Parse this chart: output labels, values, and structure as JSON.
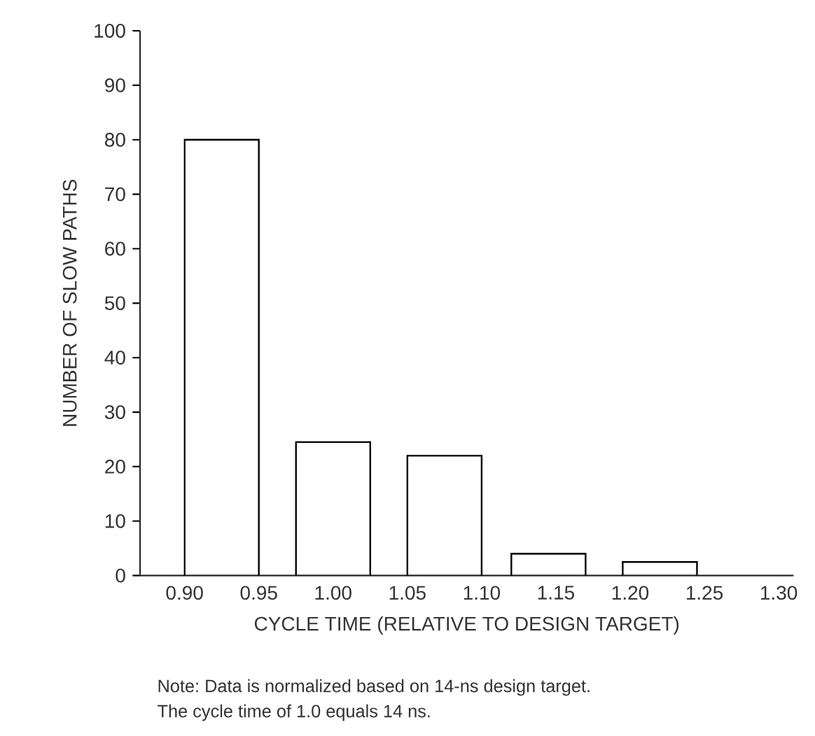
{
  "chart_data": {
    "type": "bar",
    "xlabel": "CYCLE TIME (RELATIVE TO DESIGN TARGET)",
    "ylabel": "NUMBER OF SLOW PATHS",
    "x": [
      0.925,
      1.0,
      1.075,
      1.145,
      1.22
    ],
    "values": [
      80,
      24.5,
      22,
      4,
      2.5
    ],
    "xlim": [
      0.87,
      1.31
    ],
    "ylim": [
      0,
      100
    ],
    "xticks": [
      {
        "value": 0.9,
        "label": "0.90"
      },
      {
        "value": 0.95,
        "label": "0.95"
      },
      {
        "value": 1.0,
        "label": "1.00"
      },
      {
        "value": 1.05,
        "label": "1.05"
      },
      {
        "value": 1.1,
        "label": "1.10"
      },
      {
        "value": 1.15,
        "label": "1.15"
      },
      {
        "value": 1.2,
        "label": "1.20"
      },
      {
        "value": 1.25,
        "label": "1.25"
      },
      {
        "value": 1.3,
        "label": "1.30"
      }
    ],
    "yticks": [
      0,
      10,
      20,
      30,
      40,
      50,
      60,
      70,
      80,
      90,
      100
    ],
    "annotations": [
      "Note: Data is normalized based on 14-ns design target.",
      "The cycle time of 1.0 equals 14 ns."
    ]
  }
}
